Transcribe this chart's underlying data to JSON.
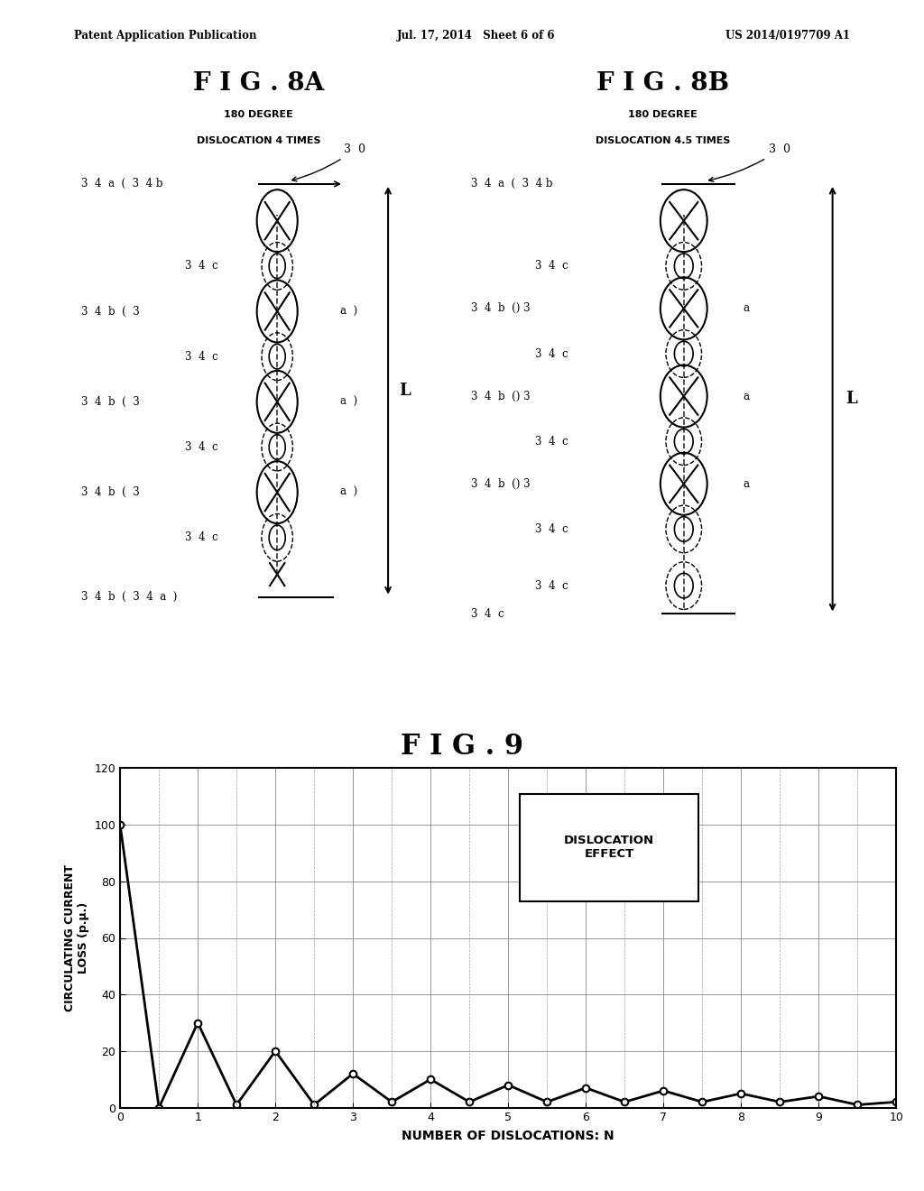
{
  "header_left": "Patent Application Publication",
  "header_mid": "Jul. 17, 2014   Sheet 6 of 6",
  "header_right": "US 2014/0197709 A1",
  "fig8a_title": "F I G . 8A",
  "fig8b_title": "F I G . 8B",
  "fig9_title": "F I G . 9",
  "fig8a_subtitle1": "180 DEGREE",
  "fig8a_subtitle2": "DISLOCATION 4 TIMES",
  "fig8b_subtitle1": "180 DEGREE",
  "fig8b_subtitle2": "DISLOCATION 4.5 TIMES",
  "xlabel": "NUMBER OF DISLOCATIONS: N",
  "ylabel": "CIRCULATING CURRENT\nLOSS (p.μ.)",
  "legend_text": "DISLOCATION\nEFFECT",
  "x_data": [
    0,
    0.5,
    1.0,
    1.5,
    2.0,
    2.5,
    3.0,
    3.5,
    4.0,
    4.5,
    5.0,
    5.5,
    6.0,
    6.5,
    7.0,
    7.5,
    8.0,
    8.5,
    9.0,
    9.5,
    10.0
  ],
  "y_data": [
    100,
    0,
    30,
    1,
    20,
    1,
    12,
    2,
    10,
    2,
    8,
    2,
    7,
    2,
    6,
    2,
    5,
    2,
    4,
    1,
    2
  ],
  "y_ticks": [
    0,
    20,
    40,
    60,
    80,
    100,
    120
  ],
  "x_ticks": [
    0,
    1,
    2,
    3,
    4,
    5,
    6,
    7,
    8,
    9,
    10
  ],
  "bg_color": "#ffffff"
}
